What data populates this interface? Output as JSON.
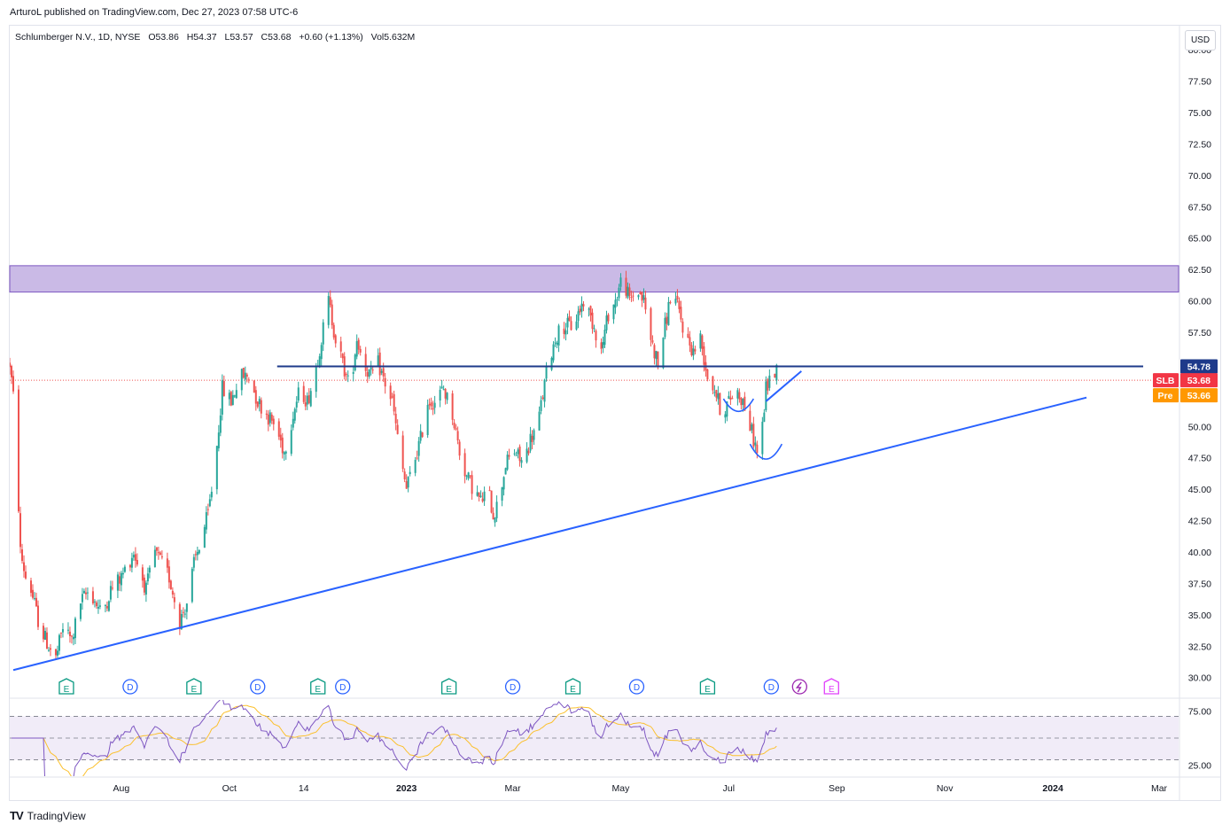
{
  "header": {
    "published": "ArturoL published on TradingView.com, Dec 27, 2023 07:58 UTC-6"
  },
  "legend": {
    "symbol": "Schlumberger N.V., 1D, NYSE",
    "open": "O53.86",
    "high": "H54.37",
    "low": "L53.57",
    "close": "C53.68",
    "change": "+0.60 (+1.13%)",
    "volume": "Vol5.632M"
  },
  "currency_button": "USD",
  "footer": {
    "brand": "TradingView",
    "logo_text": "TV"
  },
  "price_labels": [
    {
      "tag": "",
      "value": "54.78",
      "price": 54.78,
      "color": "#1e3a8a"
    },
    {
      "tag": "SLB",
      "value": "53.68",
      "price": 53.68,
      "color": "#f23645"
    },
    {
      "tag": "Pre",
      "value": "53.66",
      "price": 53.66,
      "color": "#ff9800"
    }
  ],
  "chart_data": {
    "type": "candlestick",
    "symbol": "SLB",
    "title": "Schlumberger N.V., 1D, NYSE",
    "price_axis": {
      "ylim": [
        28.5,
        80.5
      ],
      "ticks": [
        "30.00",
        "32.50",
        "35.00",
        "37.50",
        "40.00",
        "42.50",
        "45.00",
        "47.50",
        "50.00",
        "52.50",
        "55.00",
        "57.50",
        "60.00",
        "62.50",
        "65.00",
        "67.50",
        "70.00",
        "72.50",
        "75.00",
        "77.50",
        "80.00"
      ],
      "tick_values": [
        30,
        32.5,
        35,
        37.5,
        40,
        42.5,
        45,
        47.5,
        50,
        52.5,
        55,
        57.5,
        60,
        62.5,
        65,
        67.5,
        70,
        72.5,
        75,
        77.5,
        80
      ]
    },
    "time_axis": {
      "labels": [
        "Aug",
        "Oct",
        "14",
        "2023",
        "Mar",
        "May",
        "Jul",
        "Sep",
        "Nov",
        "2024",
        "Mar"
      ],
      "label_days": [
        63,
        124,
        166,
        224,
        284,
        345,
        406,
        467,
        528,
        589,
        649
      ],
      "visible_days": [
        0,
        660
      ],
      "start_date": "2022-06-01"
    },
    "price_anchors": [
      [
        0,
        55
      ],
      [
        3,
        51
      ],
      [
        6,
        40
      ],
      [
        9,
        38
      ],
      [
        12,
        37
      ],
      [
        17,
        34
      ],
      [
        22,
        32.5
      ],
      [
        26,
        31.5
      ],
      [
        30,
        34
      ],
      [
        35,
        33
      ],
      [
        40,
        36
      ],
      [
        45,
        37
      ],
      [
        52,
        35
      ],
      [
        57,
        37
      ],
      [
        63,
        38
      ],
      [
        70,
        40
      ],
      [
        77,
        37
      ],
      [
        82,
        40
      ],
      [
        90,
        38
      ],
      [
        96,
        34.5
      ],
      [
        100,
        36
      ],
      [
        104,
        39
      ],
      [
        108,
        41
      ],
      [
        112,
        43
      ],
      [
        116,
        47
      ],
      [
        120,
        53
      ],
      [
        125,
        52
      ],
      [
        130,
        54
      ],
      [
        135,
        54
      ],
      [
        140,
        52
      ],
      [
        145,
        51
      ],
      [
        150,
        50
      ],
      [
        155,
        48
      ],
      [
        160,
        51
      ],
      [
        164,
        53
      ],
      [
        168,
        52
      ],
      [
        172,
        54
      ],
      [
        176,
        57
      ],
      [
        180,
        60
      ],
      [
        184,
        57
      ],
      [
        188,
        55
      ],
      [
        192,
        53
      ],
      [
        196,
        57
      ],
      [
        200,
        55
      ],
      [
        204,
        54
      ],
      [
        208,
        55
      ],
      [
        213,
        53
      ],
      [
        216,
        52
      ],
      [
        220,
        48
      ],
      [
        224,
        45
      ],
      [
        228,
        47
      ],
      [
        232,
        49
      ],
      [
        236,
        52
      ],
      [
        240,
        52
      ],
      [
        245,
        53
      ],
      [
        250,
        51
      ],
      [
        254,
        48
      ],
      [
        258,
        46
      ],
      [
        262,
        45
      ],
      [
        266,
        44
      ],
      [
        270,
        45
      ],
      [
        273,
        43
      ],
      [
        276,
        44
      ],
      [
        280,
        47
      ],
      [
        285,
        48
      ],
      [
        290,
        47
      ],
      [
        294,
        49
      ],
      [
        298,
        50
      ],
      [
        304,
        55
      ],
      [
        308,
        57
      ],
      [
        312,
        58
      ],
      [
        318,
        58
      ],
      [
        324,
        60
      ],
      [
        330,
        58
      ],
      [
        334,
        56
      ],
      [
        338,
        59
      ],
      [
        342,
        60
      ],
      [
        346,
        62
      ],
      [
        350,
        60
      ],
      [
        354,
        61
      ],
      [
        358,
        60
      ],
      [
        362,
        57
      ],
      [
        366,
        55
      ],
      [
        370,
        58
      ],
      [
        374,
        61
      ],
      [
        378,
        59
      ],
      [
        382,
        57
      ],
      [
        386,
        56
      ],
      [
        390,
        57
      ],
      [
        394,
        54
      ],
      [
        398,
        53
      ],
      [
        402,
        51
      ],
      [
        406,
        52
      ],
      [
        410,
        53
      ],
      [
        414,
        52
      ],
      [
        418,
        50
      ],
      [
        422,
        48
      ],
      [
        424,
        48.5
      ],
      [
        427,
        53
      ],
      [
        430,
        54
      ],
      [
        433,
        54.5
      ]
    ],
    "trendlines": [
      {
        "name": "rising-support",
        "from": [
          2,
          30.6
        ],
        "to": [
          608,
          52.3
        ],
        "color": "#2962ff"
      },
      {
        "name": "horizontal-resistance",
        "from": [
          151,
          54.78
        ],
        "to": [
          640,
          54.78
        ],
        "color": "#1e3a8a"
      },
      {
        "name": "short-rising-line",
        "from": [
          427,
          52
        ],
        "to": [
          447,
          54.4
        ],
        "color": "#2962ff"
      }
    ],
    "resistance_zone": {
      "from": 60.7,
      "to": 62.8,
      "color": "#b39ddb"
    },
    "last_price_line": 53.68,
    "arcs": [
      {
        "name": "first-bottom-arc",
        "from_day": 403,
        "to_day": 420,
        "low": 51.2,
        "top": 52.2
      },
      {
        "name": "second-bottom-arc",
        "from_day": 418,
        "to_day": 436,
        "low": 47.4,
        "top": 48.6
      }
    ],
    "events": [
      {
        "type": "E",
        "day": 32
      },
      {
        "type": "D",
        "day": 68
      },
      {
        "type": "E",
        "day": 104
      },
      {
        "type": "D",
        "day": 140
      },
      {
        "type": "E",
        "day": 174
      },
      {
        "type": "D",
        "day": 188
      },
      {
        "type": "E",
        "day": 248
      },
      {
        "type": "D",
        "day": 284
      },
      {
        "type": "E",
        "day": 318
      },
      {
        "type": "D",
        "day": 354
      },
      {
        "type": "E",
        "day": 394
      },
      {
        "type": "D",
        "day": 430
      },
      {
        "type": "S",
        "day": 446
      },
      {
        "type": "E",
        "day": 464
      }
    ],
    "rsi": {
      "ylim": [
        15,
        85
      ],
      "ticks": [
        "25.00",
        "75.00"
      ],
      "tick_values": [
        25,
        75
      ],
      "band": [
        30,
        70
      ],
      "midline": 50
    }
  },
  "colors": {
    "up": "#26a69a",
    "down": "#ef5350",
    "rsi_line": "#7e57c2",
    "rsi_ma": "#fbc02d",
    "rsi_band": "#ede7f6",
    "event_e": "#089981",
    "event_d": "#2962ff",
    "event_s": "#9c27b0",
    "event_e_future": "#e040fb"
  }
}
